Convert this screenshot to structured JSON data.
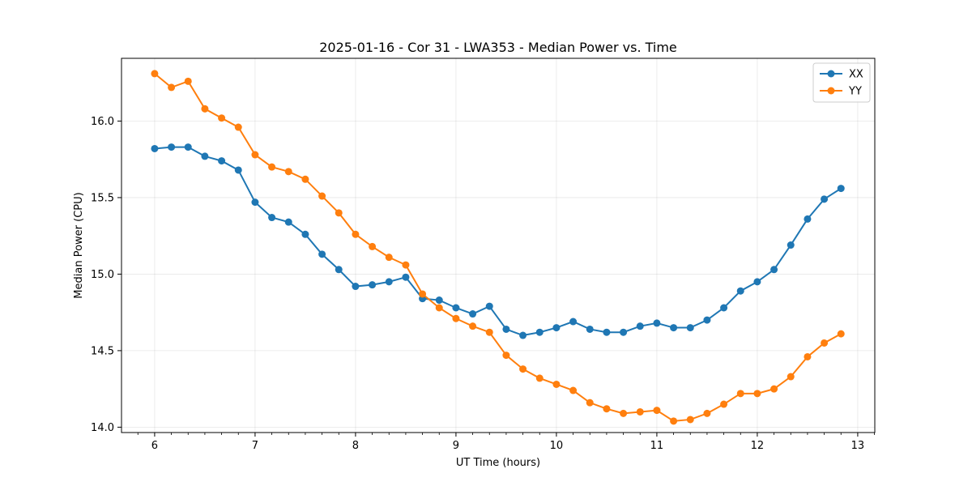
{
  "chart_data": {
    "type": "line",
    "title": "2025-01-16 - Cor 31 - LWA353 - Median Power vs. Time",
    "xlabel": "UT Time (hours)",
    "ylabel": "Median Power (CPU)",
    "xlim": [
      5.67,
      13.17
    ],
    "ylim": [
      13.965,
      16.41
    ],
    "xticks": [
      6,
      7,
      8,
      9,
      10,
      11,
      12,
      13
    ],
    "yticks": [
      14.0,
      14.5,
      15.0,
      15.5,
      16.0
    ],
    "xtick_labels": [
      "6",
      "7",
      "8",
      "9",
      "10",
      "11",
      "12",
      "13"
    ],
    "ytick_labels": [
      "14.0",
      "14.5",
      "15.0",
      "15.5",
      "16.0"
    ],
    "grid": true,
    "legend_position": "top-right",
    "x": [
      6.0,
      6.1667,
      6.3333,
      6.5,
      6.6667,
      6.8333,
      7.0,
      7.1667,
      7.3333,
      7.5,
      7.6667,
      7.8333,
      8.0,
      8.1667,
      8.3333,
      8.5,
      8.6667,
      8.8333,
      9.0,
      9.1667,
      9.3333,
      9.5,
      9.6667,
      9.8333,
      10.0,
      10.1667,
      10.3333,
      10.5,
      10.6667,
      10.8333,
      11.0,
      11.1667,
      11.3333,
      11.5,
      11.6667,
      11.8333,
      12.0,
      12.1667,
      12.3333,
      12.5,
      12.6667,
      12.8333
    ],
    "series": [
      {
        "name": "XX",
        "color": "#1f77b4",
        "values": [
          15.82,
          15.83,
          15.83,
          15.77,
          15.74,
          15.68,
          15.47,
          15.37,
          15.34,
          15.26,
          15.13,
          15.03,
          14.92,
          14.93,
          14.95,
          14.98,
          14.84,
          14.83,
          14.78,
          14.74,
          14.79,
          14.64,
          14.6,
          14.62,
          14.65,
          14.69,
          14.64,
          14.62,
          14.62,
          14.66,
          14.68,
          14.65,
          14.65,
          14.7,
          14.78,
          14.89,
          14.95,
          15.03,
          15.19,
          15.36,
          15.49,
          15.56
        ]
      },
      {
        "name": "YY",
        "color": "#ff7f0e",
        "values": [
          16.31,
          16.22,
          16.26,
          16.08,
          16.02,
          15.96,
          15.78,
          15.7,
          15.67,
          15.62,
          15.51,
          15.4,
          15.26,
          15.18,
          15.11,
          15.06,
          14.87,
          14.78,
          14.71,
          14.66,
          14.62,
          14.47,
          14.38,
          14.32,
          14.28,
          14.24,
          14.16,
          14.12,
          14.09,
          14.1,
          14.11,
          14.04,
          14.05,
          14.09,
          14.15,
          14.22,
          14.22,
          14.25,
          14.33,
          14.46,
          14.55,
          14.61
        ]
      }
    ]
  }
}
